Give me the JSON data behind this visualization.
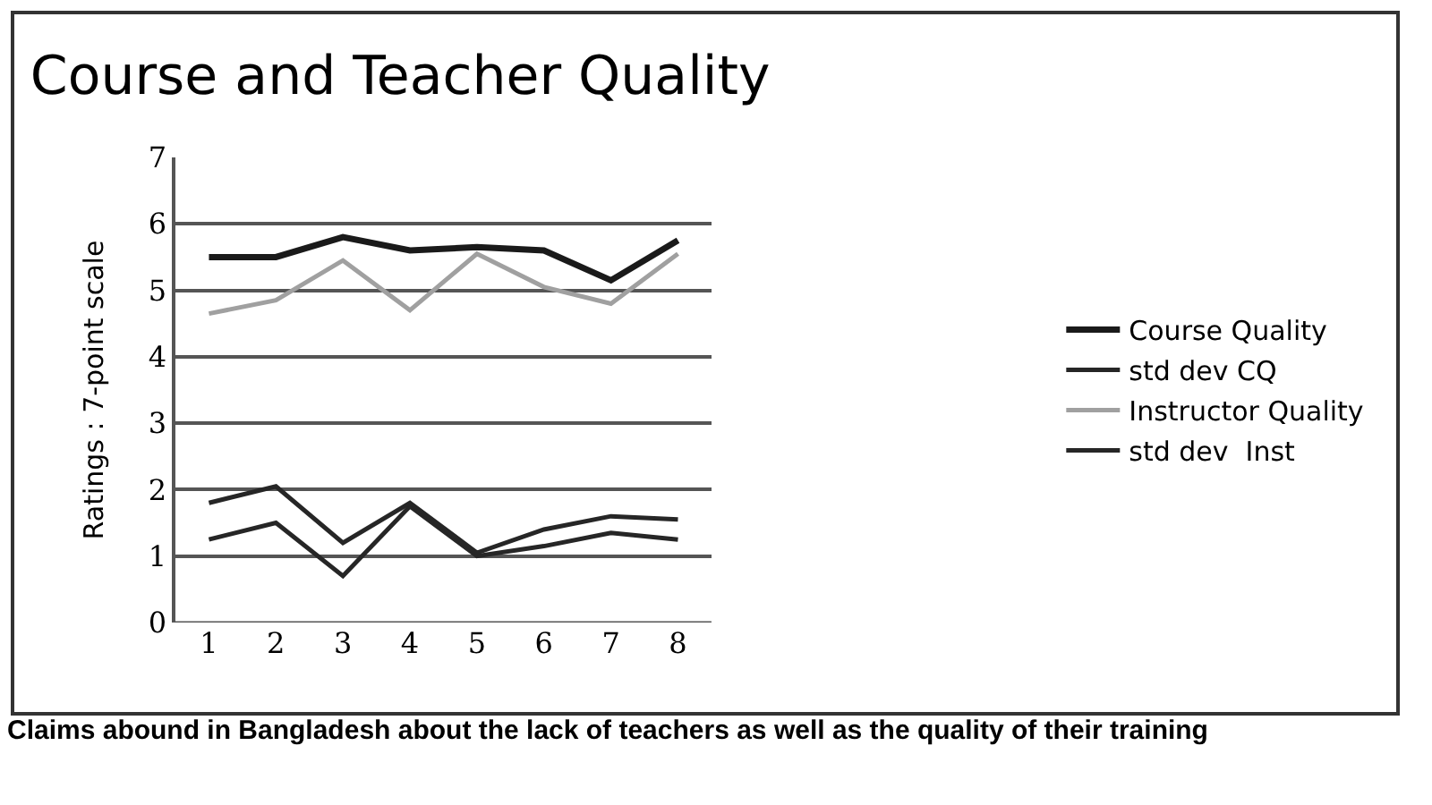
{
  "chart_data": {
    "type": "line",
    "title": "Course and Teacher Quality",
    "ylabel": "Ratings : 7-point scale",
    "categories": [
      "1",
      "2",
      "3",
      "4",
      "5",
      "6",
      "7",
      "8"
    ],
    "series": [
      {
        "name": "Course Quality",
        "color": "#1a1a1a",
        "values": [
          5.5,
          5.5,
          5.8,
          5.6,
          5.65,
          5.6,
          5.15,
          5.75
        ]
      },
      {
        "name": "std dev CQ",
        "color": "#262626",
        "values": [
          1.25,
          1.5,
          0.7,
          1.75,
          1.0,
          1.15,
          1.35,
          1.25
        ]
      },
      {
        "name": "Instructor Quality",
        "color": "#a0a0a0",
        "values": [
          4.65,
          4.85,
          5.45,
          4.7,
          5.55,
          5.05,
          4.8,
          5.55
        ]
      },
      {
        "name": "std dev  Inst",
        "color": "#262626",
        "values": [
          1.8,
          2.05,
          1.2,
          1.8,
          1.05,
          1.4,
          1.6,
          1.55
        ]
      }
    ],
    "ylim": [
      0,
      7
    ],
    "yticks": [
      0,
      1,
      2,
      3,
      4,
      5,
      6,
      7
    ],
    "grid": "y",
    "legend": "right",
    "marker": "none",
    "line_style": "solid",
    "annotations": [
      "Claims abound in Bangladesh about the lack of teachers as well as the quality of their training"
    ]
  }
}
